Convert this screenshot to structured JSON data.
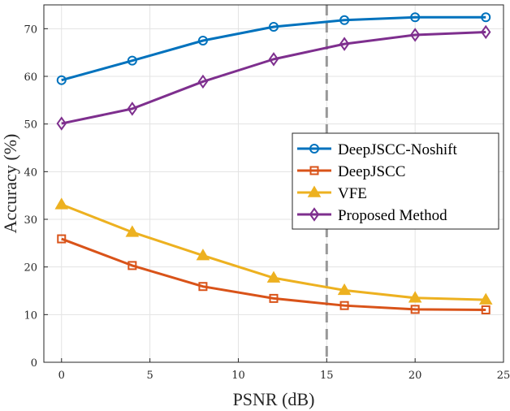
{
  "chart_data": {
    "type": "line",
    "title": "",
    "xlabel": "PSNR (dB)",
    "ylabel": "Accuracy (%)",
    "xlim": [
      -1,
      25
    ],
    "ylim": [
      0,
      75
    ],
    "xticks": [
      0,
      5,
      10,
      15,
      20,
      25
    ],
    "yticks": [
      0,
      10,
      20,
      30,
      40,
      50,
      60,
      70
    ],
    "grid": true,
    "legend_position": "center-right",
    "x": [
      0,
      4,
      8,
      12,
      16,
      20,
      24
    ],
    "vline_x": 15,
    "series": [
      {
        "name": "DeepJSCC-Noshift",
        "color": "#0072BD",
        "marker": "circle",
        "values": [
          59.2,
          63.3,
          67.5,
          70.4,
          71.8,
          72.4,
          72.4
        ]
      },
      {
        "name": "DeepJSCC",
        "color": "#D95319",
        "marker": "square",
        "values": [
          25.9,
          20.3,
          15.9,
          13.4,
          11.9,
          11.1,
          11.0
        ]
      },
      {
        "name": "VFE",
        "color": "#EDB120",
        "marker": "triangle",
        "values": [
          33.1,
          27.3,
          22.4,
          17.7,
          15.1,
          13.5,
          13.1
        ]
      },
      {
        "name": "Proposed Method",
        "color": "#7E2F8E",
        "marker": "diamond",
        "values": [
          50.1,
          53.2,
          58.9,
          63.6,
          66.8,
          68.7,
          69.3
        ]
      }
    ]
  }
}
